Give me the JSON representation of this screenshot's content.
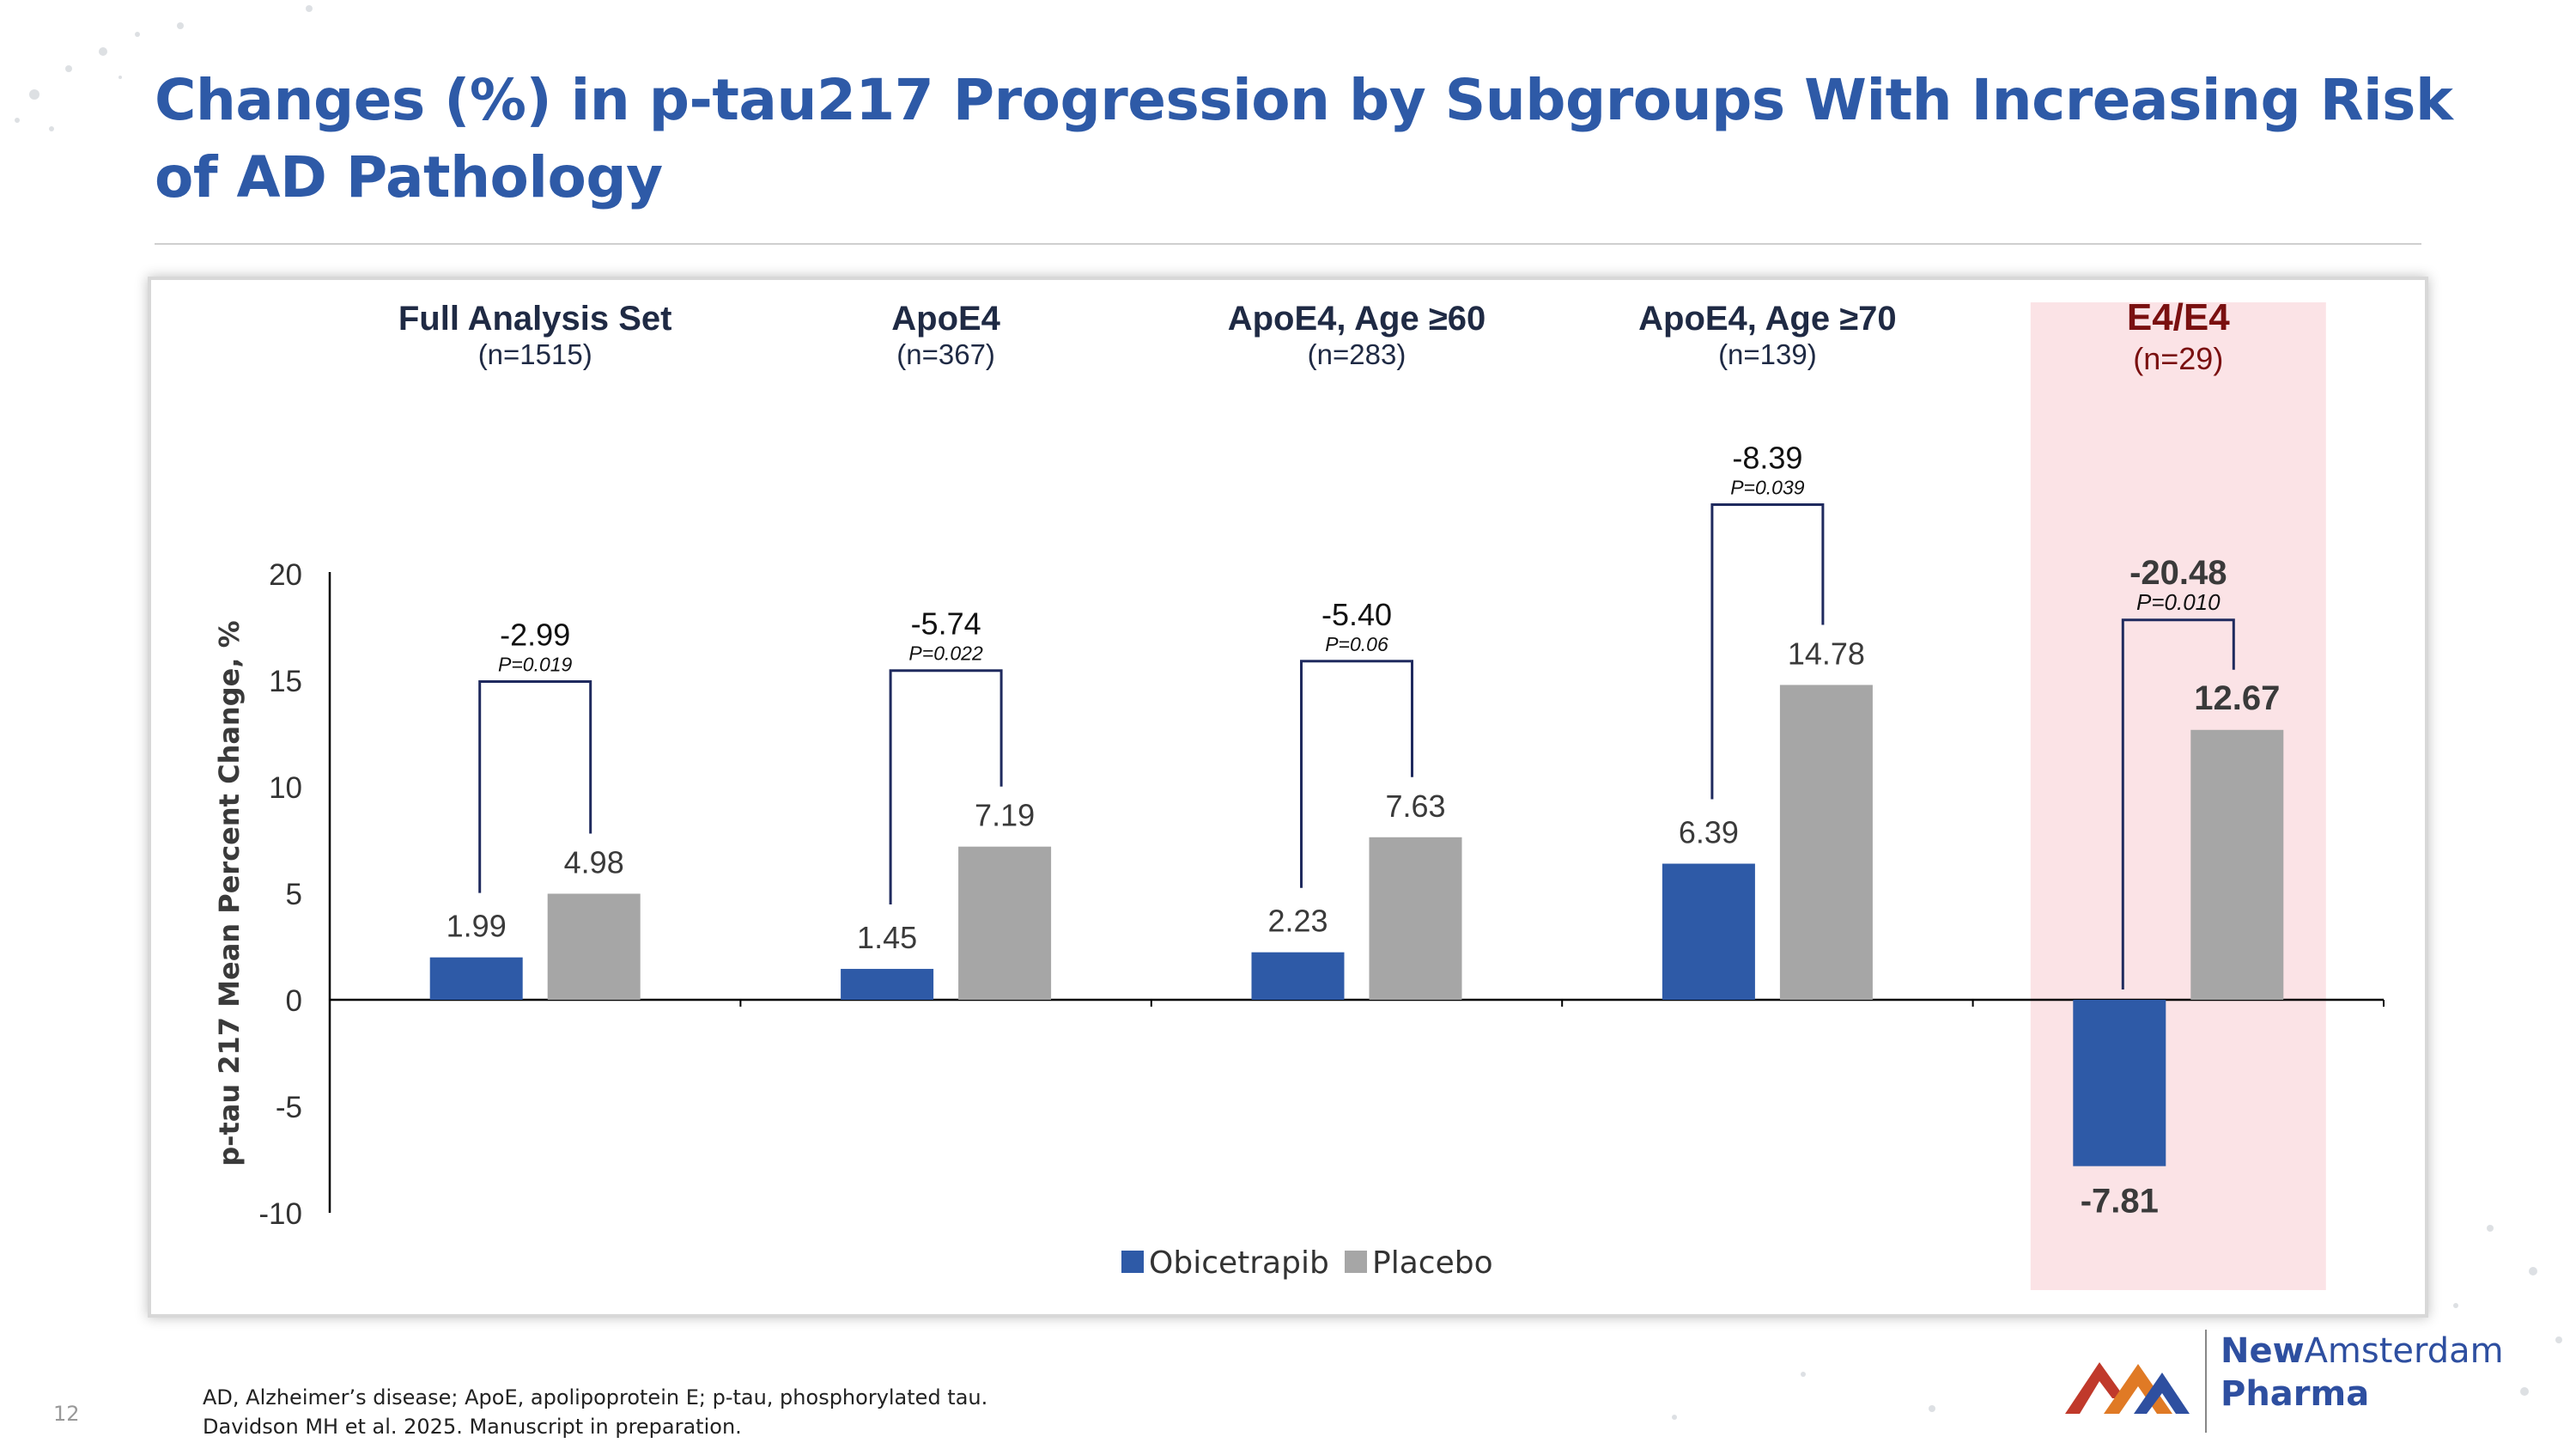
{
  "slide": {
    "title": "Changes (%) in p-tau217 Progression by Subgroups With Increasing Risk of AD Pathology",
    "page_number": "12",
    "footnote_line1": "AD, Alzheimer’s disease; ApoE, apolipoprotein E; p-tau, phosphorylated tau.",
    "footnote_line2": "Davidson MH et al. 2025. Manuscript in preparation.",
    "logo": {
      "name_part1": "New",
      "name_part2": "Amsterdam",
      "name_part3": "Pharma"
    }
  },
  "chart_data": {
    "type": "bar",
    "ylabel": "p-tau 217 Mean Percent Change, %",
    "ylim": [
      -10,
      20
    ],
    "yticks": [
      20,
      15,
      10,
      5,
      0,
      -5,
      -10
    ],
    "legend_position": "bottom-center",
    "categories": [
      {
        "title": "Full Analysis Set",
        "n": "(n=1515)",
        "diff": "-2.99",
        "p": "P=0.019",
        "highlight": false
      },
      {
        "title": "ApoE4",
        "n": "(n=367)",
        "diff": "-5.74",
        "p": "P=0.022",
        "highlight": false
      },
      {
        "title": "ApoE4, Age ≥60",
        "n": "(n=283)",
        "diff": "-5.40",
        "p": "P=0.06",
        "highlight": false
      },
      {
        "title": "ApoE4, Age ≥70",
        "n": "(n=139)",
        "diff": "-8.39",
        "p": "P=0.039",
        "highlight": false
      },
      {
        "title": "E4/E4",
        "n": "(n=29)",
        "diff": "-20.48",
        "p": "P=0.010",
        "highlight": true
      }
    ],
    "series": [
      {
        "name": "Obicetrapib",
        "color": "#2e5aa7",
        "values": [
          1.99,
          1.45,
          2.23,
          6.39,
          -7.81
        ],
        "labels": [
          "1.99",
          "1.45",
          "2.23",
          "6.39",
          "-7.81"
        ]
      },
      {
        "name": "Placebo",
        "color": "#a6a6a6",
        "values": [
          4.98,
          7.19,
          7.63,
          14.78,
          12.67
        ],
        "labels": [
          "4.98",
          "7.19",
          "7.63",
          "14.78",
          "12.67"
        ]
      }
    ],
    "colors": {
      "highlight_band": "#fbe3e6",
      "highlight_text": "#7a1010",
      "header_text": "#1f2a44",
      "bracket": "#1f2a5e"
    }
  }
}
